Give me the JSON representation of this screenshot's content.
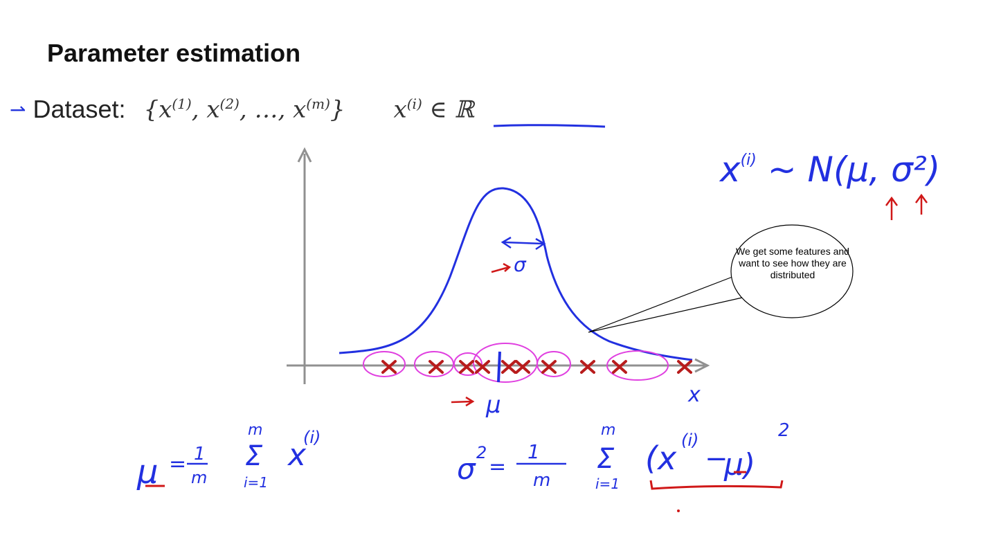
{
  "slide": {
    "title": "Parameter estimation",
    "dataset_label": "Dataset:",
    "dataset_set": "{x(1), x(2), …, x(m)}",
    "dataset_domain": "x(i) ∈ ℝ"
  },
  "annotations": {
    "distribution": "x(i) ~ N(μ, σ²)",
    "sigma_label": "σ",
    "mu_label": "μ",
    "x_axis_label": "x",
    "mu_estimate": "μ = 1/m Σ x(i)",
    "sigma_estimate": "σ² = 1/m Σ (x(i) − μ)²",
    "sum_upper": "m",
    "sum_lower": "i=1"
  },
  "callout": {
    "text": "We get some features and want to see how they are distributed"
  },
  "colors": {
    "ink_blue": "#2230e0",
    "ink_red": "#d01818",
    "ink_magenta": "#e040e0",
    "cross_red": "#b81c1c",
    "axis_gray": "#909090"
  },
  "icons": {
    "bullet": "right-arrow-icon"
  }
}
